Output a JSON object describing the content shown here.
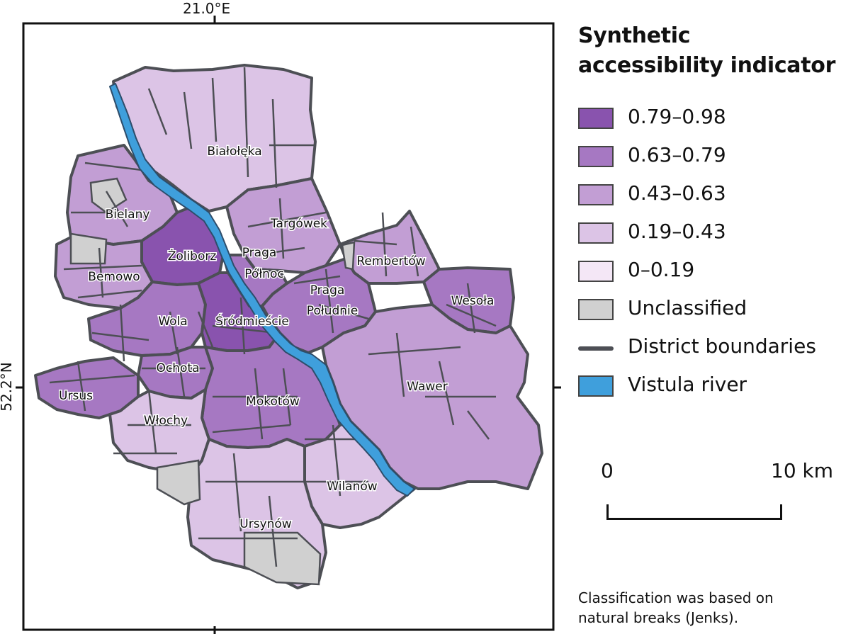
{
  "legend": {
    "title": "Synthetic accessibility indicator",
    "classes": [
      {
        "label": "0.79–0.98",
        "color": "#8953ae"
      },
      {
        "label": "0.63–0.79",
        "color": "#a678c2"
      },
      {
        "label": "0.43–0.63",
        "color": "#c29ed4"
      },
      {
        "label": "0.19–0.43",
        "color": "#dcc4e6"
      },
      {
        "label": "0–0.19",
        "color": "#f4e7f6"
      },
      {
        "label": "Unclassified",
        "color": "#d0d0d0"
      }
    ],
    "district_boundaries_label": "District boundaries",
    "river_label": "Vistula river",
    "river_color": "#3f9fdc",
    "boundary_color": "#4d4f55"
  },
  "scale": {
    "start": "0",
    "end": "10 km"
  },
  "note": {
    "line1": "Classification was based on",
    "line2": "natural breaks (Jenks)."
  },
  "coordinates": {
    "longitude": "21.0°E",
    "latitude": "52.2°N"
  },
  "districts": [
    {
      "name": "Białołęka",
      "class": 3
    },
    {
      "name": "Bielany",
      "class": 2
    },
    {
      "name": "Targówek",
      "class": 2
    },
    {
      "name": "Żoliborz",
      "class": 0
    },
    {
      "name": "Praga Północ",
      "class": 1
    },
    {
      "name": "Rembertów",
      "class": 2
    },
    {
      "name": "Bemowo",
      "class": 2
    },
    {
      "name": "Praga Południe",
      "class": 1
    },
    {
      "name": "Wesoła",
      "class": 1
    },
    {
      "name": "Wola",
      "class": 1
    },
    {
      "name": "Śródmieście",
      "class": 0
    },
    {
      "name": "Ochota",
      "class": 1
    },
    {
      "name": "Wawer",
      "class": 2
    },
    {
      "name": "Ursus",
      "class": 1
    },
    {
      "name": "Mokotów",
      "class": 1
    },
    {
      "name": "Włochy",
      "class": 3
    },
    {
      "name": "Wilanów",
      "class": 3
    },
    {
      "name": "Ursynów",
      "class": 3
    }
  ]
}
